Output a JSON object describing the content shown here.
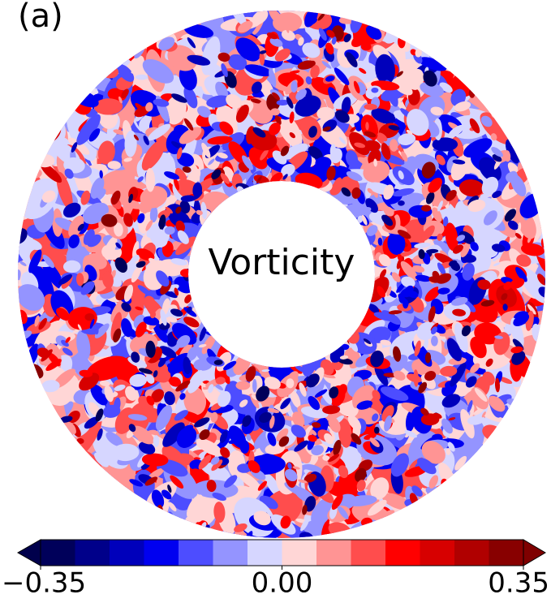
{
  "chart_data": {
    "type": "contour",
    "panel_label": "(a)",
    "center_label": "Vorticity",
    "colorbar": {
      "lim": [
        -0.35,
        0.35
      ],
      "ticks": [
        {
          "value": -0.35,
          "label": "−0.35"
        },
        {
          "value": 0,
          "label": "0.00"
        },
        0.35
      ],
      "colors": [
        "#00005a",
        "#00008a",
        "#0000bb",
        "#0000f0",
        "#4d4dff",
        "#9494ff",
        "#d6d6ff",
        "#ffd6d6",
        "#ff9494",
        "#ff4d4d",
        "#ff0000",
        "#d70000",
        "#b00000",
        "#880000"
      ],
      "under_color": "#00004c",
      "over_color": "#7f0000",
      "extend": "both"
    }
  }
}
